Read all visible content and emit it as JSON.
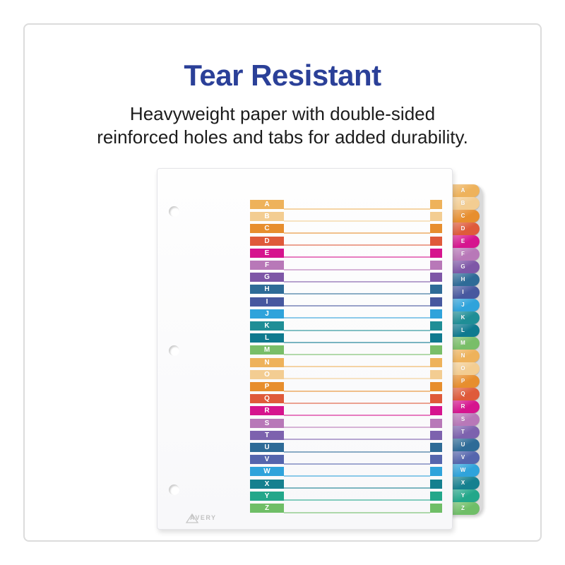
{
  "card": {
    "title": "Tear Resistant",
    "title_color": "#2b4098",
    "subtitle_line1": "Heavyweight paper with double-sided",
    "subtitle_line2": "reinforced holes and tabs for added durability."
  },
  "divider": {
    "brand": "AVERY",
    "tabs": [
      {
        "letter": "A",
        "color": "#eeb25b"
      },
      {
        "letter": "B",
        "color": "#f3cd92"
      },
      {
        "letter": "C",
        "color": "#e78e2e"
      },
      {
        "letter": "D",
        "color": "#df5a3a"
      },
      {
        "letter": "E",
        "color": "#d6148e"
      },
      {
        "letter": "F",
        "color": "#b878b8"
      },
      {
        "letter": "G",
        "color": "#7e57a7"
      },
      {
        "letter": "H",
        "color": "#2e6b97"
      },
      {
        "letter": "I",
        "color": "#47589f"
      },
      {
        "letter": "J",
        "color": "#2fa3db"
      },
      {
        "letter": "K",
        "color": "#1f8e96"
      },
      {
        "letter": "L",
        "color": "#0f7a8f"
      },
      {
        "letter": "M",
        "color": "#79be68"
      },
      {
        "letter": "N",
        "color": "#eeb25b"
      },
      {
        "letter": "O",
        "color": "#f3cd92"
      },
      {
        "letter": "P",
        "color": "#e78e2e"
      },
      {
        "letter": "Q",
        "color": "#df5a3a"
      },
      {
        "letter": "R",
        "color": "#d6148e"
      },
      {
        "letter": "S",
        "color": "#b878b8"
      },
      {
        "letter": "T",
        "color": "#7d62ae"
      },
      {
        "letter": "U",
        "color": "#2e6b97"
      },
      {
        "letter": "V",
        "color": "#5565ad"
      },
      {
        "letter": "W",
        "color": "#2fa3db"
      },
      {
        "letter": "X",
        "color": "#15808f"
      },
      {
        "letter": "Y",
        "color": "#23a78a"
      },
      {
        "letter": "Z",
        "color": "#6fbe67"
      }
    ]
  }
}
